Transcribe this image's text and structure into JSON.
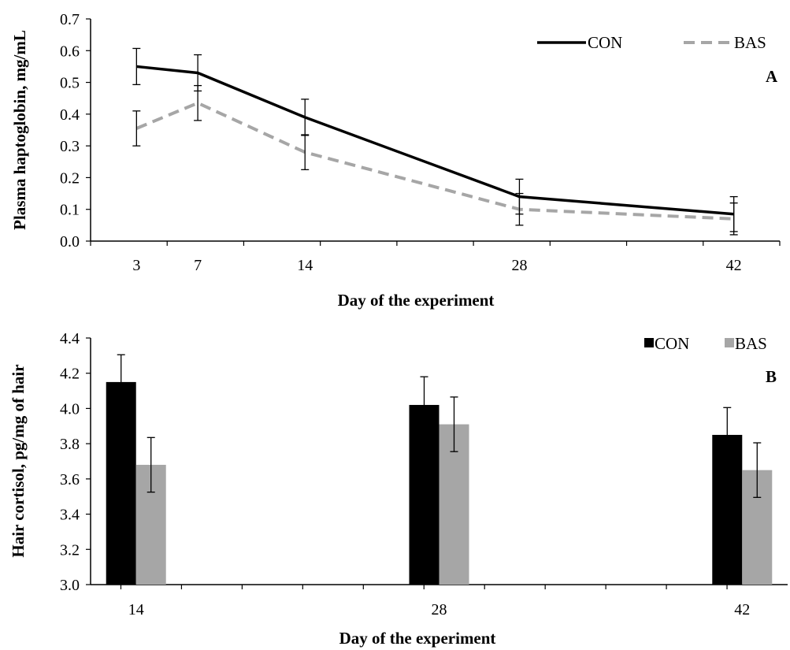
{
  "chart_data": [
    {
      "type": "line",
      "panel_label": "A",
      "title": "",
      "xlabel": "Day of the experiment",
      "ylabel": "Plasma haptoglobin, mg/mL",
      "x": [
        3,
        7,
        14,
        28,
        42
      ],
      "x_tick_labels": [
        "3",
        "7",
        "14",
        "28",
        "42"
      ],
      "xlim": [
        0,
        45
      ],
      "ylim": [
        0,
        0.7
      ],
      "y_ticks": [
        0,
        0.1,
        0.2,
        0.3,
        0.4,
        0.5,
        0.6,
        0.7
      ],
      "y_tick_labels": [
        "0.0",
        "0.1",
        "0.2",
        "0.3",
        "0.4",
        "0.5",
        "0.6",
        "0.7"
      ],
      "legend_position": "top-right",
      "series": [
        {
          "name": "CON",
          "values": [
            0.55,
            0.53,
            0.39,
            0.14,
            0.085
          ],
          "error": [
            0.057,
            0.057,
            0.057,
            0.055,
            0.055
          ],
          "color": "#000000",
          "dash": "solid"
        },
        {
          "name": "BAS",
          "values": [
            0.355,
            0.435,
            0.28,
            0.1,
            0.07
          ],
          "error": [
            0.055,
            0.055,
            0.055,
            0.05,
            0.05
          ],
          "color": "#a6a6a6",
          "dash": "dashed"
        }
      ]
    },
    {
      "type": "bar",
      "panel_label": "B",
      "title": "",
      "xlabel": "Day of the experiment",
      "ylabel": "Hair cortisol, pg/mg of hair",
      "categories": [
        "14",
        "28",
        "42"
      ],
      "ylim": [
        3.0,
        4.4
      ],
      "y_ticks": [
        3.0,
        3.2,
        3.4,
        3.6,
        3.8,
        4.0,
        4.2,
        4.4
      ],
      "y_tick_labels": [
        "3.0",
        "3.2",
        "3.4",
        "3.6",
        "3.8",
        "4.0",
        "4.2",
        "4.4"
      ],
      "legend_position": "top-right",
      "series": [
        {
          "name": "CON",
          "values": [
            4.15,
            4.02,
            3.85
          ],
          "error": [
            0.155,
            0.16,
            0.155
          ],
          "color": "#000000"
        },
        {
          "name": "BAS",
          "values": [
            3.68,
            3.91,
            3.65
          ],
          "error": [
            0.155,
            0.155,
            0.155
          ],
          "color": "#a6a6a6"
        }
      ]
    }
  ]
}
